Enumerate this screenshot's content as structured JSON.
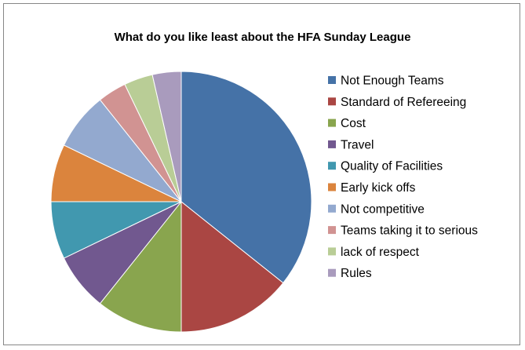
{
  "chart_data": {
    "type": "pie",
    "title": "What do you like least about the HFA Sunday League",
    "legend_position": "right",
    "slices": [
      {
        "label": "Not Enough Teams",
        "value": 10,
        "color": "#4572A7"
      },
      {
        "label": "Standard of Refereeing",
        "value": 4,
        "color": "#AA4643"
      },
      {
        "label": "Cost",
        "value": 3,
        "color": "#89A54E"
      },
      {
        "label": "Travel",
        "value": 2,
        "color": "#71588F"
      },
      {
        "label": "Quality of Facilities",
        "value": 2,
        "color": "#4198AF"
      },
      {
        "label": "Early kick offs",
        "value": 2,
        "color": "#DB843D"
      },
      {
        "label": "Not competitive",
        "value": 2,
        "color": "#93A9CF"
      },
      {
        "label": "Teams taking it to serious",
        "value": 1,
        "color": "#D19392"
      },
      {
        "label": "lack of respect",
        "value": 1,
        "color": "#B9CD96"
      },
      {
        "label": "Rules",
        "value": 1,
        "color": "#A99BBD"
      }
    ]
  }
}
